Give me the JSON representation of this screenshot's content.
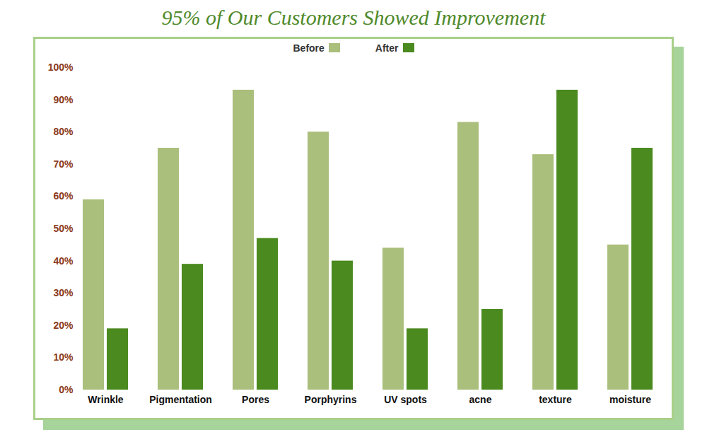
{
  "chart_data": {
    "type": "bar",
    "title": "95% of Our Customers Showed Improvement",
    "categories": [
      "Wrinkle",
      "Pigmentation",
      "Pores",
      "Porphyrins",
      "UV spots",
      "acne",
      "texture",
      "moisture"
    ],
    "series": [
      {
        "name": "Before",
        "color": "#aabf7c",
        "values": [
          59,
          75,
          93,
          80,
          44,
          83,
          73,
          45
        ]
      },
      {
        "name": "After",
        "color": "#4b8a1f",
        "values": [
          19,
          39,
          47,
          40,
          19,
          25,
          93,
          75
        ]
      }
    ],
    "ylim": [
      0,
      100
    ],
    "yticks": [
      {
        "value": 0,
        "label": "0%"
      },
      {
        "value": 10,
        "label": "10%"
      },
      {
        "value": 20,
        "label": "20%"
      },
      {
        "value": 30,
        "label": "30%"
      },
      {
        "value": 40,
        "label": "40%"
      },
      {
        "value": 50,
        "label": "50%"
      },
      {
        "value": 60,
        "label": "60%"
      },
      {
        "value": 70,
        "label": "70%"
      },
      {
        "value": 80,
        "label": "80%"
      },
      {
        "value": 90,
        "label": "90%"
      },
      {
        "value": 100,
        "label": "100%"
      }
    ],
    "grid": false,
    "legend": "top"
  }
}
